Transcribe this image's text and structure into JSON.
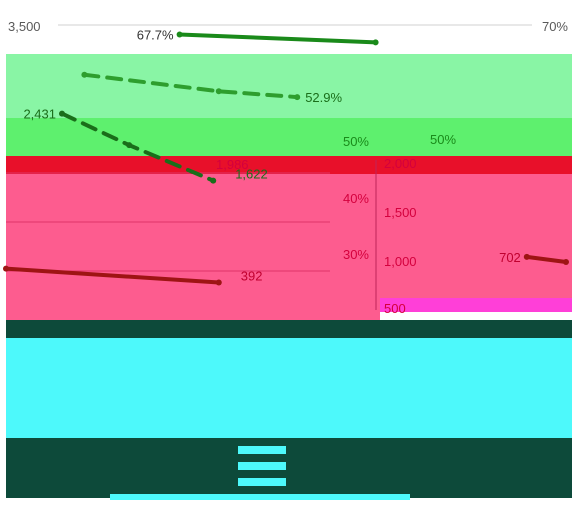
{
  "chart_data": {
    "type": "line",
    "left_axis": {
      "min": 0,
      "max": 3500,
      "ticks": [
        "3,500"
      ]
    },
    "right_axis": {
      "min": 0,
      "max": 0.7,
      "ticks": [
        "70%"
      ]
    },
    "inner_percent_ticks": [
      "50%",
      "40%",
      "30%"
    ],
    "inner_count_ticks": [
      "2,000",
      "1,500",
      "1,000",
      "500"
    ],
    "series": [
      {
        "axis": "right",
        "color": "#1a8a1a",
        "points": [
          {
            "x": 0.31,
            "y": 0.677,
            "label": "67.7%"
          },
          {
            "x": 0.66,
            "y": 0.658,
            "label": ""
          }
        ]
      },
      {
        "axis": "left",
        "color": "#2e9e2e",
        "dashed": true,
        "points": [
          {
            "x": 0.14,
            "y": 2900,
            "label": ""
          },
          {
            "x": 0.38,
            "y": 2700,
            "label": ""
          },
          {
            "x": 0.52,
            "y": 2630,
            "label": "52.9%"
          }
        ]
      },
      {
        "axis": "left",
        "color": "#1a6e1a",
        "dashed": true,
        "points": [
          {
            "x": 0.1,
            "y": 2431,
            "label": "2,431"
          },
          {
            "x": 0.22,
            "y": 2050,
            "label": ""
          },
          {
            "x": 0.37,
            "y": 1622,
            "label": "1,622"
          }
        ]
      },
      {
        "axis": "left",
        "color": "#9e1414",
        "dashed": false,
        "points": [
          {
            "x": 0.0,
            "y": 560,
            "label": ""
          },
          {
            "x": 0.38,
            "y": 392,
            "label": "392"
          }
        ]
      },
      {
        "axis": "left",
        "color": "#9e1414",
        "dashed": false,
        "points": [
          {
            "x": 0.93,
            "y": 702,
            "label": "702"
          },
          {
            "x": 1.0,
            "y": 640,
            "label": ""
          }
        ]
      }
    ],
    "extra_labels": [
      "1,986",
      "50%"
    ],
    "colors": {
      "green_band": "#5ef06e",
      "light_green_band": "#89f5a5",
      "red_strip": "#e8102a",
      "pink_band": "#fd5c8f",
      "magenta_strip": "#ff3fd8",
      "dark_green_band": "#0d4a3a",
      "cyan_band": "#4df9fb",
      "pink_label": "#d4003d"
    }
  },
  "legend_rows": [
    "",
    "",
    ""
  ]
}
